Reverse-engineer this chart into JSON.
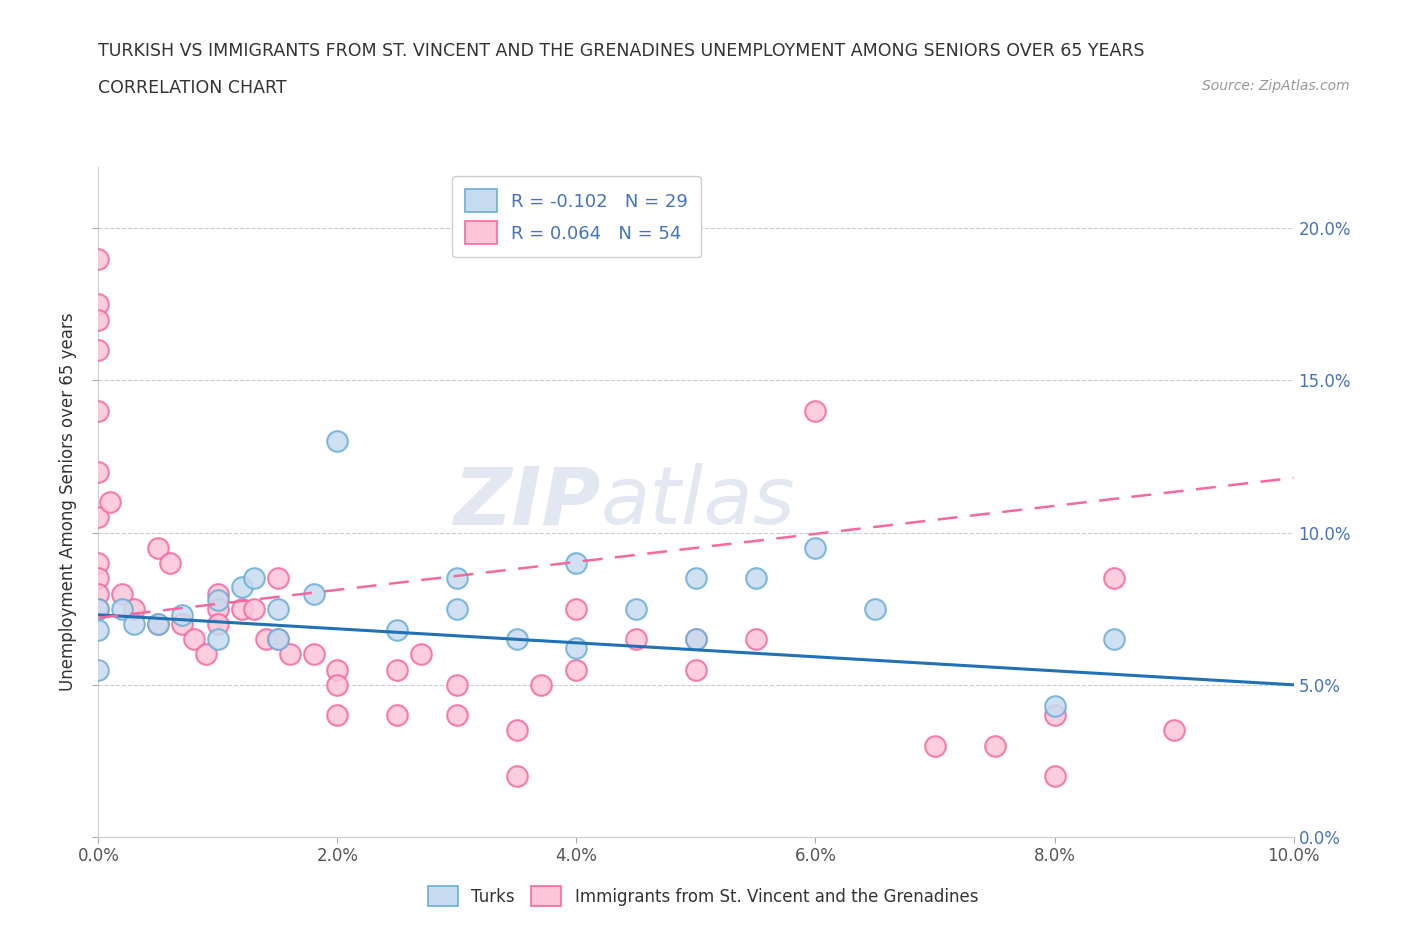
{
  "title_line1": "TURKISH VS IMMIGRANTS FROM ST. VINCENT AND THE GRENADINES UNEMPLOYMENT AMONG SENIORS OVER 65 YEARS",
  "title_line2": "CORRELATION CHART",
  "source_text": "Source: ZipAtlas.com",
  "ylabel": "Unemployment Among Seniors over 65 years",
  "xlim": [
    0.0,
    0.1
  ],
  "ylim": [
    0.0,
    0.22
  ],
  "xticks": [
    0.0,
    0.02,
    0.04,
    0.06,
    0.08,
    0.1
  ],
  "yticks": [
    0.0,
    0.05,
    0.1,
    0.15,
    0.2
  ],
  "xticklabels": [
    "0.0%",
    "2.0%",
    "4.0%",
    "6.0%",
    "8.0%",
    "10.0%"
  ],
  "yticklabels": [
    "0.0%",
    "5.0%",
    "10.0%",
    "15.0%",
    "20.0%"
  ],
  "turks_color": "#6baed6",
  "turks_fill": "#c6dbef",
  "immigrants_color": "#f768a1",
  "immigrants_fill": "#fcc5d8",
  "turks_R": -0.102,
  "turks_N": 29,
  "immigrants_R": 0.064,
  "immigrants_N": 54,
  "legend_label_turks": "Turks",
  "legend_label_immigrants": "Immigrants from St. Vincent and the Grenadines",
  "watermark_zip": "ZIP",
  "watermark_atlas": "atlas",
  "turks_x": [
    0.0,
    0.0,
    0.0,
    0.002,
    0.003,
    0.005,
    0.007,
    0.01,
    0.01,
    0.012,
    0.013,
    0.015,
    0.015,
    0.018,
    0.02,
    0.025,
    0.03,
    0.03,
    0.035,
    0.04,
    0.04,
    0.045,
    0.05,
    0.05,
    0.055,
    0.06,
    0.065,
    0.08,
    0.085
  ],
  "turks_y": [
    0.075,
    0.068,
    0.055,
    0.075,
    0.07,
    0.07,
    0.073,
    0.078,
    0.065,
    0.082,
    0.085,
    0.075,
    0.065,
    0.08,
    0.13,
    0.068,
    0.085,
    0.075,
    0.065,
    0.062,
    0.09,
    0.075,
    0.085,
    0.065,
    0.085,
    0.095,
    0.075,
    0.043,
    0.065
  ],
  "immigrants_x": [
    0.0,
    0.0,
    0.0,
    0.0,
    0.0,
    0.0,
    0.0,
    0.0,
    0.0,
    0.0,
    0.0,
    0.001,
    0.002,
    0.003,
    0.005,
    0.005,
    0.006,
    0.007,
    0.008,
    0.009,
    0.01,
    0.01,
    0.01,
    0.012,
    0.013,
    0.014,
    0.015,
    0.015,
    0.016,
    0.018,
    0.02,
    0.02,
    0.02,
    0.025,
    0.025,
    0.027,
    0.03,
    0.03,
    0.035,
    0.035,
    0.037,
    0.04,
    0.04,
    0.045,
    0.05,
    0.05,
    0.055,
    0.06,
    0.07,
    0.075,
    0.08,
    0.08,
    0.085,
    0.09
  ],
  "immigrants_y": [
    0.19,
    0.175,
    0.17,
    0.16,
    0.14,
    0.12,
    0.105,
    0.09,
    0.085,
    0.08,
    0.075,
    0.11,
    0.08,
    0.075,
    0.095,
    0.07,
    0.09,
    0.07,
    0.065,
    0.06,
    0.08,
    0.075,
    0.07,
    0.075,
    0.075,
    0.065,
    0.085,
    0.065,
    0.06,
    0.06,
    0.055,
    0.05,
    0.04,
    0.055,
    0.04,
    0.06,
    0.05,
    0.04,
    0.035,
    0.02,
    0.05,
    0.075,
    0.055,
    0.065,
    0.065,
    0.055,
    0.065,
    0.14,
    0.03,
    0.03,
    0.04,
    0.02,
    0.085,
    0.035
  ],
  "turks_trend_x0": 0.0,
  "turks_trend_y0": 0.073,
  "turks_trend_x1": 0.1,
  "turks_trend_y1": 0.05,
  "immigrants_trend_x0": 0.0,
  "immigrants_trend_y0": 0.072,
  "immigrants_trend_x1": 0.1,
  "immigrants_trend_y1": 0.118
}
